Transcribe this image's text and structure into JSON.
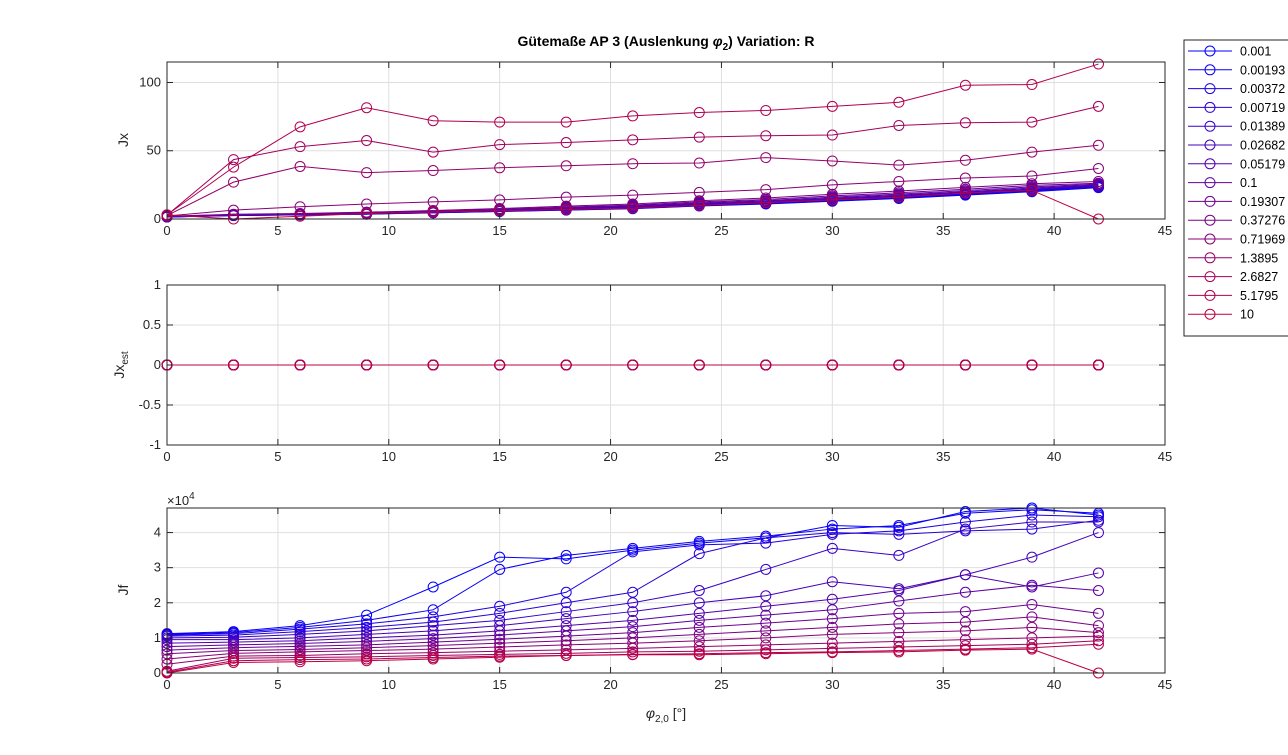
{
  "figure": {
    "title_main": "Gütemaße AP 3 (Auslenkung ",
    "title_phi": "φ",
    "title_sub": "2",
    "title_tail": ")  Variation: R",
    "xlabel_phi": "φ",
    "xlabel_sub": "2,0",
    "xlabel_tail": " [°]"
  },
  "legend": {
    "placement": "outside-top-right",
    "entries": [
      "0.001",
      "0.00193",
      "0.00372",
      "0.00719",
      "0.01389",
      "0.02682",
      "0.05179",
      "0.1",
      "0.19307",
      "0.37276",
      "0.71969",
      "1.3895",
      "2.6827",
      "5.1795",
      "10"
    ],
    "colors": [
      "#0000ff",
      "#0d00f1",
      "#1b00e4",
      "#2800d6",
      "#3600c9",
      "#4400bb",
      "#5100ae",
      "#5f00a0",
      "#6d0092",
      "#7a0085",
      "#880077",
      "#96006a",
      "#a3005c",
      "#b1004f",
      "#be0041"
    ]
  },
  "chart_data": [
    {
      "type": "line",
      "marker": "circle",
      "ylabel": "Jx",
      "xlim": [
        0,
        45
      ],
      "ylim": [
        0,
        115
      ],
      "grid": true,
      "x_ticks": [
        0,
        5,
        10,
        15,
        20,
        25,
        30,
        35,
        40,
        45
      ],
      "y_ticks": [
        0,
        50,
        100
      ],
      "x_tick_labels": [
        "0",
        "5",
        "10",
        "15",
        "20",
        "25",
        "30",
        "35",
        "40",
        "45"
      ],
      "y_tick_labels": [
        "0",
        "50",
        "100"
      ],
      "x": [
        0,
        3,
        6,
        9,
        12,
        15,
        18,
        21,
        24,
        27,
        30,
        33,
        36,
        39,
        42
      ],
      "series": [
        {
          "name": "0.001",
          "values": [
            1.5,
            2.5,
            3,
            3.5,
            4.5,
            5.5,
            6.5,
            7.5,
            9.5,
            11,
            13,
            15,
            17.5,
            20,
            23
          ]
        },
        {
          "name": "0.00193",
          "values": [
            1.5,
            2.6,
            3,
            3.6,
            4.6,
            5.6,
            6.6,
            7.7,
            9.7,
            11.2,
            13.2,
            15.3,
            17.8,
            20.3,
            23.2
          ]
        },
        {
          "name": "0.00372",
          "values": [
            1.5,
            2.6,
            3.1,
            3.7,
            4.7,
            5.7,
            6.8,
            7.9,
            9.9,
            11.4,
            13.5,
            15.6,
            18.1,
            20.6,
            23.5
          ]
        },
        {
          "name": "0.00719",
          "values": [
            1.6,
            2.7,
            3.1,
            3.8,
            4.8,
            5.9,
            7,
            8.1,
            10.2,
            11.7,
            13.8,
            16,
            18.5,
            21,
            23.8
          ]
        },
        {
          "name": "0.01389",
          "values": [
            1.6,
            2.7,
            3.2,
            3.9,
            4.9,
            6,
            7.2,
            8.4,
            10.5,
            12,
            14.2,
            16.4,
            18.9,
            21.4,
            24.2
          ]
        },
        {
          "name": "0.02682",
          "values": [
            1.7,
            2.8,
            3.3,
            4,
            5,
            6.2,
            7.5,
            8.7,
            10.9,
            12.4,
            14.7,
            16.9,
            19.4,
            22,
            24.6
          ]
        },
        {
          "name": "0.05179",
          "values": [
            1.8,
            2.9,
            3.4,
            4.2,
            5.2,
            6.4,
            7.8,
            9.1,
            11.3,
            12.9,
            15.3,
            17.5,
            20,
            22.7,
            25
          ]
        },
        {
          "name": "0.1",
          "values": [
            1.9,
            3,
            3.5,
            4.4,
            5.4,
            6.7,
            8.2,
            9.6,
            11.8,
            13.5,
            16,
            18.2,
            20.8,
            23.5,
            25.5
          ]
        },
        {
          "name": "0.19307",
          "values": [
            2,
            3.2,
            3.7,
            4.6,
            5.7,
            7.1,
            8.7,
            10.2,
            12.5,
            14.3,
            16.9,
            19.2,
            21.8,
            24.6,
            26.2
          ]
        },
        {
          "name": "0.37276",
          "values": [
            2,
            3.5,
            4,
            5,
            6.2,
            7.7,
            9.4,
            11,
            13.4,
            15.4,
            18.1,
            20.5,
            23.2,
            25.8,
            27.5
          ]
        },
        {
          "name": "0.71969",
          "values": [
            2.2,
            6.5,
            9,
            11,
            12.5,
            14,
            16,
            17.5,
            19.5,
            21.5,
            25,
            27.5,
            30,
            31.5,
            37
          ]
        },
        {
          "name": "1.3895",
          "values": [
            2.5,
            27,
            38.5,
            34,
            35.5,
            37.5,
            39,
            40.5,
            41,
            45,
            42.5,
            39.5,
            43,
            49,
            54
          ]
        },
        {
          "name": "2.6827",
          "values": [
            2.8,
            43.5,
            53,
            57.5,
            49,
            54.5,
            56,
            58,
            60,
            61,
            61.5,
            68.5,
            70.5,
            71,
            82.5
          ]
        },
        {
          "name": "5.1795",
          "values": [
            3,
            38,
            67.5,
            81.5,
            72,
            71,
            71,
            75.5,
            78,
            79.5,
            82.5,
            85.5,
            98,
            98.5,
            113.5
          ]
        },
        {
          "name": "10",
          "values": [
            3,
            0,
            2,
            4,
            5,
            6,
            7,
            8,
            10,
            12,
            14,
            16,
            19,
            21,
            0
          ]
        }
      ]
    },
    {
      "type": "line",
      "marker": "circle",
      "ylabel_main": "Jx",
      "ylabel_sub": "est",
      "xlim": [
        0,
        45
      ],
      "ylim": [
        -1,
        1
      ],
      "grid": true,
      "x_ticks": [
        0,
        5,
        10,
        15,
        20,
        25,
        30,
        35,
        40,
        45
      ],
      "y_ticks": [
        -1,
        -0.5,
        0,
        0.5,
        1
      ],
      "x_tick_labels": [
        "0",
        "5",
        "10",
        "15",
        "20",
        "25",
        "30",
        "35",
        "40",
        "45"
      ],
      "y_tick_labels": [
        "-1",
        "-0.5",
        "0",
        "0.5",
        "1"
      ],
      "x": [
        0,
        3,
        6,
        9,
        12,
        15,
        18,
        21,
        24,
        27,
        30,
        33,
        36,
        39,
        42
      ],
      "series": [
        {
          "name": "0.001",
          "values": [
            0,
            0,
            0,
            0,
            0,
            0,
            0,
            0,
            0,
            0,
            0,
            0,
            0,
            0,
            0
          ]
        },
        {
          "name": "0.00193",
          "values": [
            0,
            0,
            0,
            0,
            0,
            0,
            0,
            0,
            0,
            0,
            0,
            0,
            0,
            0,
            0
          ]
        },
        {
          "name": "0.00372",
          "values": [
            0,
            0,
            0,
            0,
            0,
            0,
            0,
            0,
            0,
            0,
            0,
            0,
            0,
            0,
            0
          ]
        },
        {
          "name": "0.00719",
          "values": [
            0,
            0,
            0,
            0,
            0,
            0,
            0,
            0,
            0,
            0,
            0,
            0,
            0,
            0,
            0
          ]
        },
        {
          "name": "0.01389",
          "values": [
            0,
            0,
            0,
            0,
            0,
            0,
            0,
            0,
            0,
            0,
            0,
            0,
            0,
            0,
            0
          ]
        },
        {
          "name": "0.02682",
          "values": [
            0,
            0,
            0,
            0,
            0,
            0,
            0,
            0,
            0,
            0,
            0,
            0,
            0,
            0,
            0
          ]
        },
        {
          "name": "0.05179",
          "values": [
            0,
            0,
            0,
            0,
            0,
            0,
            0,
            0,
            0,
            0,
            0,
            0,
            0,
            0,
            0
          ]
        },
        {
          "name": "0.1",
          "values": [
            0,
            0,
            0,
            0,
            0,
            0,
            0,
            0,
            0,
            0,
            0,
            0,
            0,
            0,
            0
          ]
        },
        {
          "name": "0.19307",
          "values": [
            0,
            0,
            0,
            0,
            0,
            0,
            0,
            0,
            0,
            0,
            0,
            0,
            0,
            0,
            0
          ]
        },
        {
          "name": "0.37276",
          "values": [
            0,
            0,
            0,
            0,
            0,
            0,
            0,
            0,
            0,
            0,
            0,
            0,
            0,
            0,
            0
          ]
        },
        {
          "name": "0.71969",
          "values": [
            0,
            0,
            0,
            0,
            0,
            0,
            0,
            0,
            0,
            0,
            0,
            0,
            0,
            0,
            0
          ]
        },
        {
          "name": "1.3895",
          "values": [
            0,
            0,
            0,
            0,
            0,
            0,
            0,
            0,
            0,
            0,
            0,
            0,
            0,
            0,
            0
          ]
        },
        {
          "name": "2.6827",
          "values": [
            0,
            0,
            0,
            0,
            0,
            0,
            0,
            0,
            0,
            0,
            0,
            0,
            0,
            0,
            0
          ]
        },
        {
          "name": "5.1795",
          "values": [
            0,
            0,
            0,
            0,
            0,
            0,
            0,
            0,
            0,
            0,
            0,
            0,
            0,
            0,
            0
          ]
        },
        {
          "name": "10",
          "values": [
            0,
            0,
            0,
            0,
            0,
            0,
            0,
            0,
            0,
            0,
            0,
            0,
            0,
            0,
            0
          ]
        }
      ]
    },
    {
      "type": "line",
      "marker": "circle",
      "ylabel": "Jf",
      "y_exponent_base": "×10",
      "y_exponent_power": "4",
      "xlim": [
        0,
        45
      ],
      "ylim": [
        0,
        4.7
      ],
      "grid": true,
      "x_ticks": [
        0,
        5,
        10,
        15,
        20,
        25,
        30,
        35,
        40,
        45
      ],
      "y_ticks": [
        0,
        1,
        2,
        3,
        4
      ],
      "x_tick_labels": [
        "0",
        "5",
        "10",
        "15",
        "20",
        "25",
        "30",
        "35",
        "40",
        "45"
      ],
      "y_tick_labels": [
        "0",
        "1",
        "2",
        "3",
        "4"
      ],
      "x": [
        0,
        3,
        6,
        9,
        12,
        15,
        18,
        21,
        24,
        27,
        30,
        33,
        36,
        39,
        42
      ],
      "series": [
        {
          "name": "0.001",
          "values": [
            1.12,
            1.18,
            1.35,
            1.65,
            2.45,
            3.3,
            3.25,
            3.5,
            3.7,
            3.85,
            4.2,
            4.15,
            4.6,
            4.7,
            4.5
          ]
        },
        {
          "name": "0.00193",
          "values": [
            1.1,
            1.15,
            1.3,
            1.5,
            1.8,
            2.95,
            3.35,
            3.55,
            3.75,
            3.9,
            4.1,
            4.2,
            4.55,
            4.65,
            4.55
          ]
        },
        {
          "name": "0.00372",
          "values": [
            1.08,
            1.12,
            1.25,
            1.4,
            1.6,
            1.9,
            2.3,
            3.45,
            3.65,
            3.7,
            3.95,
            4.05,
            4.3,
            4.5,
            4.45
          ]
        },
        {
          "name": "0.00719",
          "values": [
            1.05,
            1.08,
            1.18,
            1.3,
            1.45,
            1.7,
            2.0,
            2.3,
            3.4,
            3.85,
            4.0,
            3.95,
            4.05,
            4.1,
            4.35
          ]
        },
        {
          "name": "0.01389",
          "values": [
            1.0,
            1.02,
            1.1,
            1.2,
            1.35,
            1.5,
            1.75,
            2.0,
            2.35,
            2.95,
            3.55,
            3.35,
            4.1,
            4.3,
            4.3
          ]
        },
        {
          "name": "0.02682",
          "values": [
            0.95,
            0.95,
            1.0,
            1.1,
            1.2,
            1.35,
            1.55,
            1.75,
            2.0,
            2.2,
            2.6,
            2.4,
            2.8,
            3.3,
            4.0
          ]
        },
        {
          "name": "0.05179",
          "values": [
            0.85,
            0.88,
            0.92,
            1.0,
            1.08,
            1.2,
            1.35,
            1.5,
            1.7,
            1.9,
            2.1,
            2.35,
            2.8,
            2.45,
            2.85
          ]
        },
        {
          "name": "0.1",
          "values": [
            0.75,
            0.8,
            0.84,
            0.9,
            0.98,
            1.08,
            1.2,
            1.32,
            1.5,
            1.65,
            1.8,
            2.05,
            2.3,
            2.5,
            2.35
          ]
        },
        {
          "name": "0.19307",
          "values": [
            0.65,
            0.72,
            0.76,
            0.8,
            0.88,
            0.96,
            1.05,
            1.15,
            1.3,
            1.42,
            1.55,
            1.7,
            1.75,
            1.95,
            1.7
          ]
        },
        {
          "name": "0.37276",
          "values": [
            0.55,
            0.64,
            0.67,
            0.72,
            0.78,
            0.85,
            0.92,
            1.0,
            1.1,
            1.2,
            1.3,
            1.4,
            1.45,
            1.6,
            1.35
          ]
        },
        {
          "name": "0.71969",
          "values": [
            0.4,
            0.56,
            0.6,
            0.64,
            0.68,
            0.74,
            0.8,
            0.85,
            0.92,
            1.0,
            1.1,
            1.15,
            1.2,
            1.3,
            1.15
          ]
        },
        {
          "name": "1.3895",
          "values": [
            0.25,
            0.48,
            0.5,
            0.55,
            0.58,
            0.62,
            0.66,
            0.7,
            0.75,
            0.8,
            0.85,
            0.9,
            0.95,
            1.0,
            1.05
          ]
        },
        {
          "name": "2.6827",
          "values": [
            0.05,
            0.42,
            0.44,
            0.46,
            0.5,
            0.53,
            0.56,
            0.6,
            0.62,
            0.66,
            0.7,
            0.74,
            0.78,
            0.82,
            0.92
          ]
        },
        {
          "name": "5.1795",
          "values": [
            0.02,
            0.35,
            0.38,
            0.4,
            0.44,
            0.48,
            0.5,
            0.53,
            0.55,
            0.58,
            0.6,
            0.64,
            0.68,
            0.72,
            0.82
          ]
        },
        {
          "name": "10",
          "values": [
            0,
            0.3,
            0.32,
            0.35,
            0.4,
            0.45,
            0.5,
            0.52,
            0.52,
            0.55,
            0.58,
            0.6,
            0.65,
            0.68,
            0
          ]
        }
      ]
    }
  ]
}
